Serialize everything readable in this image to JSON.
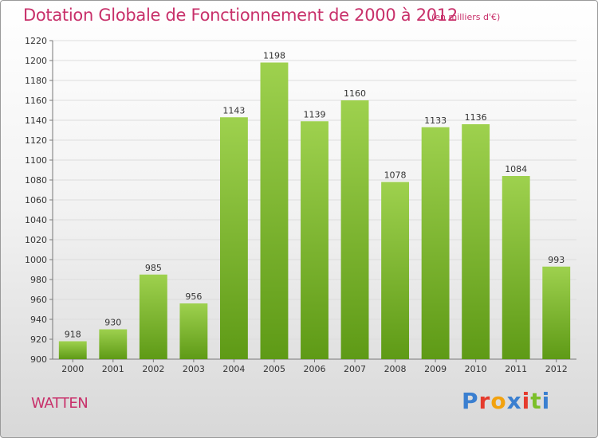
{
  "title": "Dotation Globale de Fonctionnement de 2000 à 2012",
  "unit": "(en milliers d'€)",
  "commune": "WATTEN",
  "logo": {
    "letters": [
      "P",
      "r",
      "o",
      "x",
      "i",
      "t",
      "i"
    ],
    "colors": [
      "#3a7fd0",
      "#e53b2d",
      "#f2a20f",
      "#3a7fd0",
      "#e53b2d",
      "#7bbf2a",
      "#3a7fd0"
    ]
  },
  "colors": {
    "bar_light": "#9ed14e",
    "bar_dark": "#5e9a16",
    "text_accent": "#c8306a"
  },
  "chart_data": {
    "type": "bar",
    "categories": [
      "2000",
      "2001",
      "2002",
      "2003",
      "2004",
      "2005",
      "2006",
      "2007",
      "2008",
      "2009",
      "2010",
      "2011",
      "2012"
    ],
    "values": [
      918,
      930,
      985,
      956,
      1143,
      1198,
      1139,
      1160,
      1078,
      1133,
      1136,
      1084,
      993
    ],
    "data_labels": [
      "918",
      "930",
      "985",
      "956",
      "1143",
      "1198",
      "1139",
      "1160",
      "1078",
      "1133",
      "1136",
      "1084",
      "993"
    ],
    "ylim": [
      900,
      1220
    ],
    "yticks": [
      "900",
      "920",
      "940",
      "960",
      "980",
      "1000",
      "1020",
      "1040",
      "1060",
      "1080",
      "1100",
      "1120",
      "1140",
      "1160",
      "1180",
      "1200",
      "1220"
    ],
    "grid": true,
    "title": "Dotation Globale de Fonctionnement de 2000 à 2012"
  }
}
